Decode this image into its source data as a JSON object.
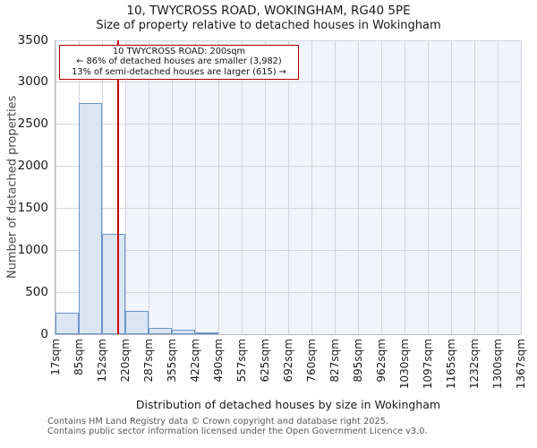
{
  "chart_data": {
    "type": "bar",
    "title": "10, TWYCROSS ROAD, WOKINGHAM, RG40 5PE",
    "subtitle": "Size of property relative to detached houses in Wokingham",
    "xlabel": "Distribution of detached houses by size in Wokingham",
    "ylabel": "Number of detached properties",
    "ylim": [
      0,
      3500
    ],
    "y_ticks": [
      0,
      500,
      1000,
      1500,
      2000,
      2500,
      3000,
      3500
    ],
    "x_tick_labels": [
      "17sqm",
      "85sqm",
      "152sqm",
      "220sqm",
      "287sqm",
      "355sqm",
      "422sqm",
      "490sqm",
      "557sqm",
      "625sqm",
      "692sqm",
      "760sqm",
      "827sqm",
      "895sqm",
      "962sqm",
      "1030sqm",
      "1097sqm",
      "1165sqm",
      "1232sqm",
      "1300sqm",
      "1367sqm"
    ],
    "bin_edges_sqm": [
      17,
      85,
      152,
      220,
      287,
      355,
      422,
      490,
      557,
      625,
      692,
      760,
      827,
      895,
      962,
      1030,
      1097,
      1165,
      1232,
      1300,
      1367
    ],
    "values": [
      255,
      2750,
      1200,
      280,
      75,
      50,
      20,
      0,
      0,
      0,
      0,
      0,
      0,
      0,
      0,
      0,
      0,
      0,
      0,
      0
    ],
    "grid": true,
    "legend": null,
    "marker": {
      "value_sqm": 200,
      "label": "10 TWYCROSS ROAD: 200sqm"
    },
    "shaded_region_sqm": [
      220,
      1367
    ]
  },
  "annotation": {
    "line1": "10 TWYCROSS ROAD: 200sqm",
    "line2": "← 86% of detached houses are smaller (3,982)",
    "line3": "13% of semi-detached houses are larger (615) →"
  },
  "footer": {
    "line1": "Contains HM Land Registry data © Crown copyright and database right 2025.",
    "line2": "Contains public sector information licensed under the Open Government Licence v3.0."
  },
  "colors": {
    "bar_fill": "#dbe5f4",
    "bar_edge": "#6b93c9",
    "marker_line": "#cc0000",
    "annotation_border": "#b00000",
    "shade": "#f1f4fb",
    "gridline": "#d4d5db",
    "footer_text": "#58585a"
  }
}
